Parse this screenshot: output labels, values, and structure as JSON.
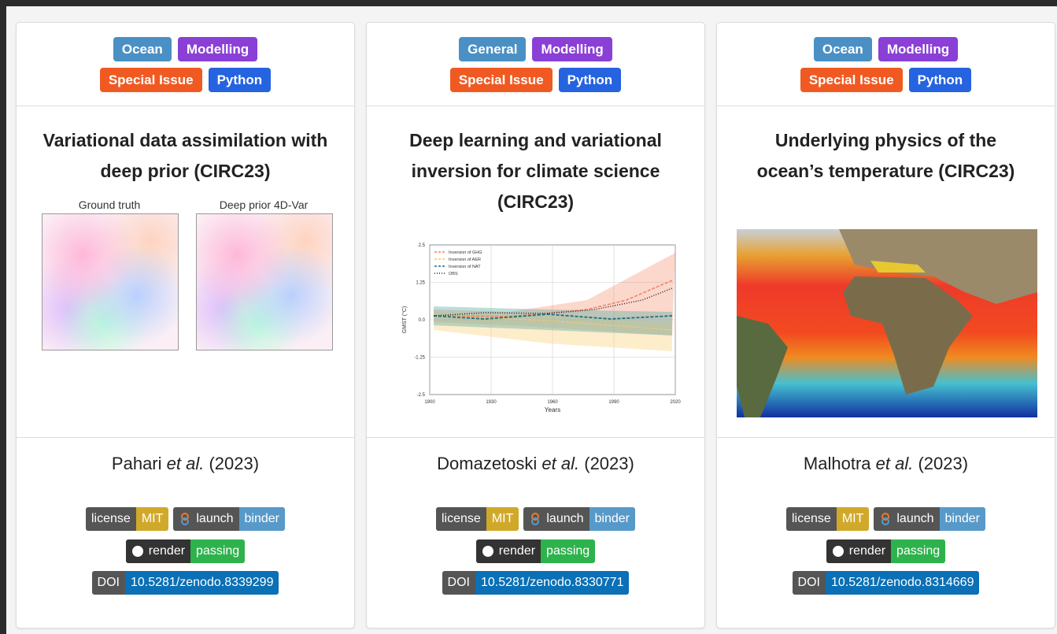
{
  "cards": [
    {
      "tags": [
        "Ocean",
        "Modelling",
        "Special Issue",
        "Python"
      ],
      "title": "Variational data assimilation with deep prior (CIRC23)",
      "figure": {
        "kind": "panels",
        "labels": [
          "Ground truth",
          "Deep prior 4D-Var"
        ]
      },
      "author": "Pahari",
      "et_al": "et al.",
      "year": "(2023)",
      "badges": {
        "license_label": "license",
        "license": "MIT",
        "launch_label": "launch",
        "launch": "binder",
        "render_label": "render",
        "render": "passing",
        "doi_label": "DOI",
        "doi": "10.5281/zenodo.8339299"
      }
    },
    {
      "tags": [
        "General",
        "Modelling",
        "Special Issue",
        "Python"
      ],
      "title": "Deep learning and variational inversion for climate science (CIRC23)",
      "figure": {
        "kind": "plot",
        "yticks": [
          "2.5",
          "1.25",
          "0.0",
          "-1.25",
          "-2.5"
        ],
        "xticks": [
          "1900",
          "1930",
          "1960",
          "1990",
          "2020"
        ],
        "xlabel": "Years",
        "ylabel": "GMST (°C)",
        "legend": [
          "Inversion of GHG",
          "Inversion of AER",
          "Inversion of NAT",
          "OBS"
        ]
      },
      "author": "Domazetoski",
      "et_al": "et al.",
      "year": "(2023)",
      "badges": {
        "license_label": "license",
        "license": "MIT",
        "launch_label": "launch",
        "launch": "binder",
        "render_label": "render",
        "render": "passing",
        "doi_label": "DOI",
        "doi": "10.5281/zenodo.8330771"
      }
    },
    {
      "tags": [
        "Ocean",
        "Modelling",
        "Special Issue",
        "Python"
      ],
      "title": "Underlying physics of the ocean’s temperature (CIRC23)",
      "figure": {
        "kind": "map"
      },
      "author": "Malhotra",
      "et_al": "et al.",
      "year": "(2023)",
      "badges": {
        "license_label": "license",
        "license": "MIT",
        "launch_label": "launch",
        "launch": "binder",
        "render_label": "render",
        "render": "passing",
        "doi_label": "DOI",
        "doi": "10.5281/zenodo.8314669"
      }
    }
  ]
}
